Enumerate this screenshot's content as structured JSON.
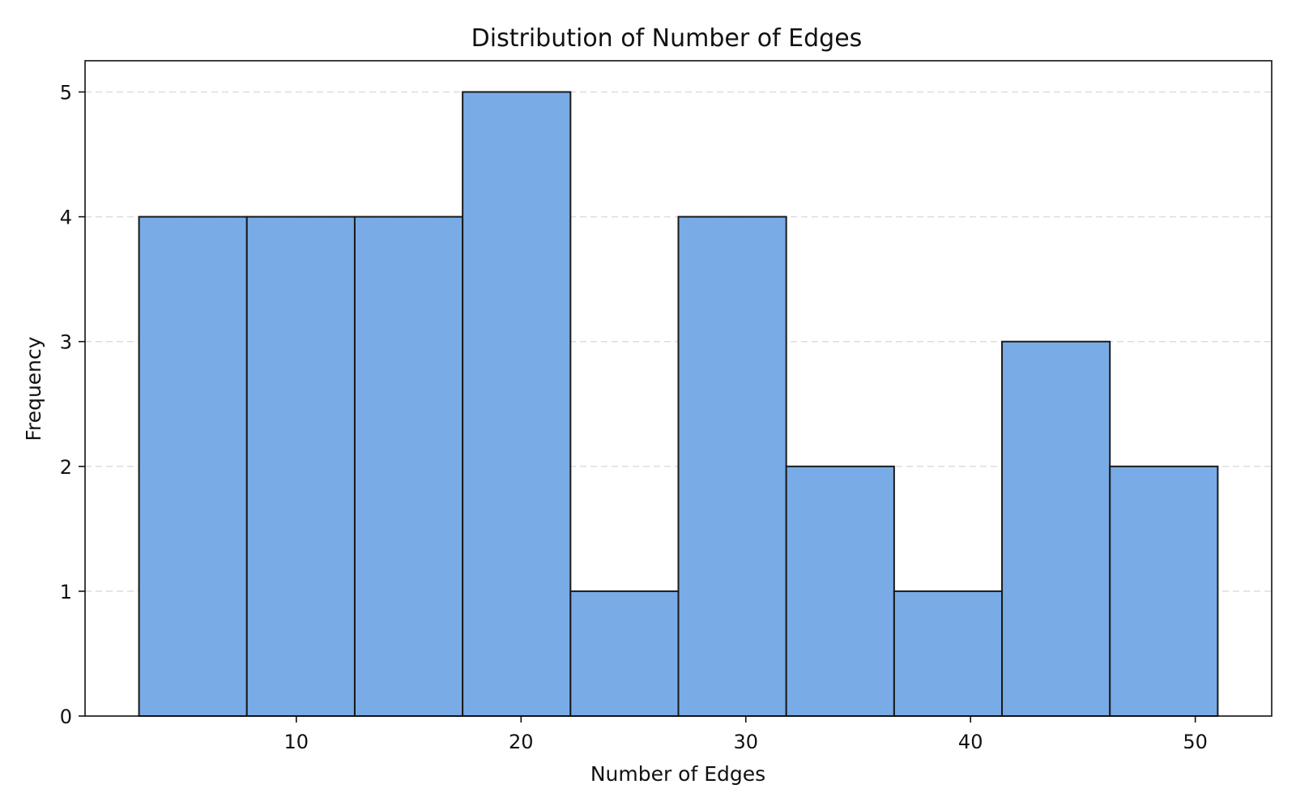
{
  "chart_data": {
    "type": "bar",
    "title": "Distribution of Number of Edges",
    "xlabel": "Number of Edges",
    "ylabel": "Frequency",
    "bin_edges": [
      3.0,
      7.8,
      12.6,
      17.4,
      22.2,
      27.0,
      31.8,
      36.6,
      41.4,
      46.2,
      51.0
    ],
    "values": [
      4,
      4,
      4,
      5,
      1,
      4,
      2,
      1,
      3,
      2
    ],
    "xlim": [
      0.6,
      53.4
    ],
    "ylim": [
      0,
      5.25
    ],
    "x_ticks": [
      10,
      20,
      30,
      40,
      50
    ],
    "x_tick_labels": [
      "10",
      "20",
      "30",
      "40",
      "50"
    ],
    "y_ticks": [
      0,
      1,
      2,
      3,
      4,
      5
    ],
    "y_tick_labels": [
      "0",
      "1",
      "2",
      "3",
      "4",
      "5"
    ],
    "grid": {
      "y": true,
      "x": false,
      "style": "dashed"
    },
    "colors": {
      "bar_fill": "#79abe6",
      "bar_edge": "#1a1a1a",
      "grid": "#dddddd",
      "axis": "#111111"
    }
  }
}
